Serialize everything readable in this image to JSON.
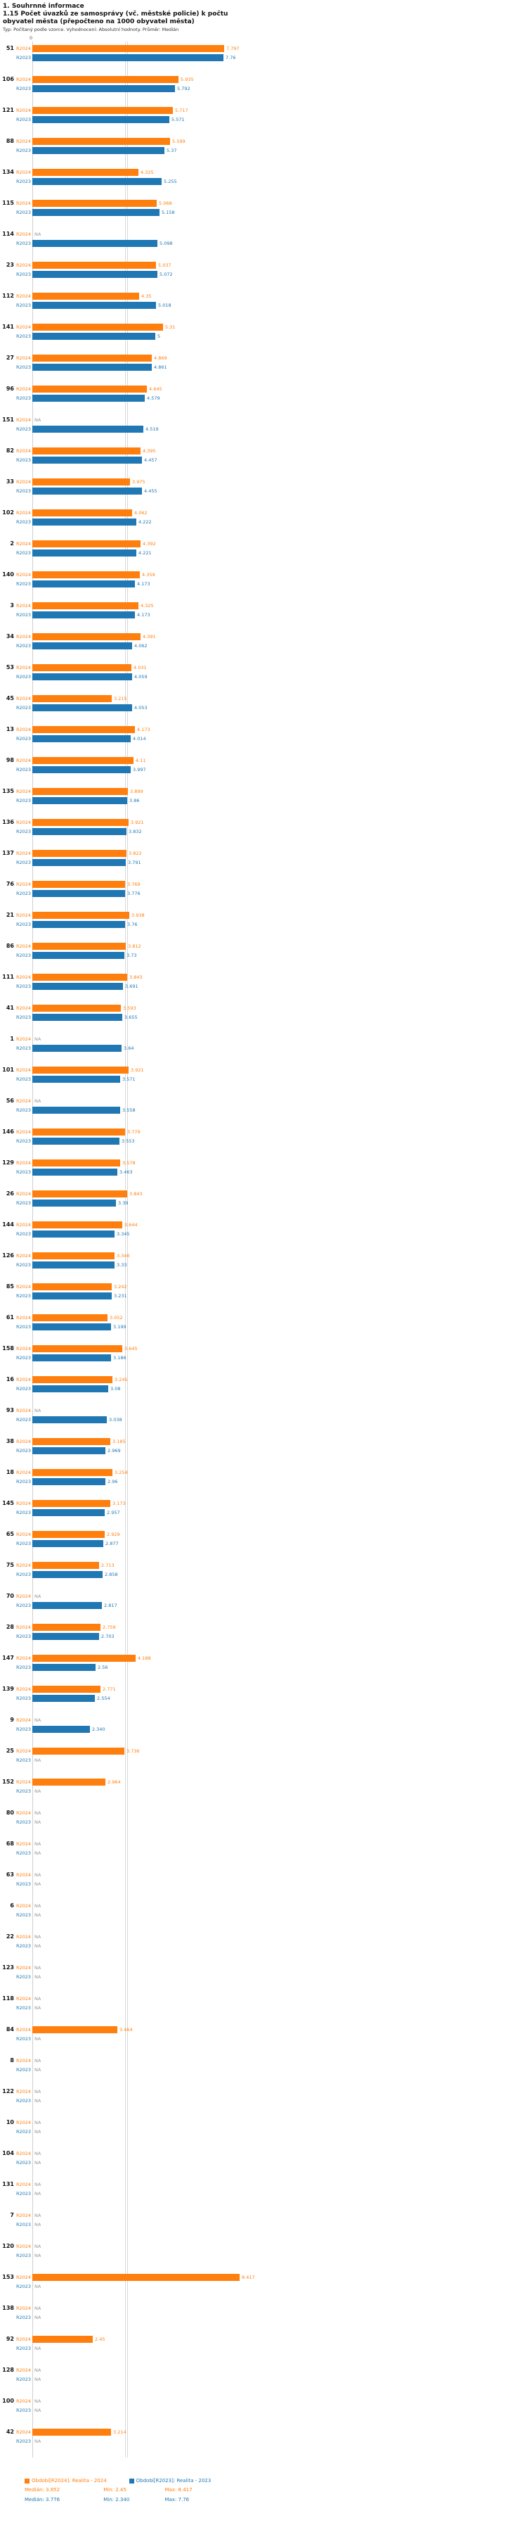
{
  "header": {
    "title": "1. Souhrnné informace",
    "subtitle": "1.15 Počet úvazků ze samosprávy (vč. městské policie) k počtu obyvatel města (přepočteno na 1000 obyvatel města)",
    "meta": "Typ: Počítaný podle vzorce. Vyhodnocení: Absolutní hodnoty. Průměr: Medián"
  },
  "chart_data": {
    "type": "bar",
    "orientation": "horizontal",
    "title": "1.15 Počet úvazků ze samosprávy (vč. městské policie) k počtu obyvatel města (přepočteno na 1000 obyvatel města)",
    "xlabel": "",
    "ylabel": "ID města",
    "axis": {
      "origin_label": "0",
      "xlim": [
        0,
        10
      ]
    },
    "grid": "median-lines-only",
    "legend_position": "bottom",
    "na_label": "NA",
    "series": [
      {
        "key": "r2024",
        "row_label": "R2024",
        "color": "#ff7f0e",
        "legend": "Období[R2024]: Realita - 2024"
      },
      {
        "key": "r2023",
        "row_label": "R2023",
        "color": "#1f77b4",
        "legend": "Období[R2023]: Realita - 2023"
      }
    ],
    "medians": [
      {
        "key": "r2024",
        "value": 3.852
      },
      {
        "key": "r2023",
        "value": 3.776
      }
    ],
    "rows": [
      {
        "id": "51",
        "r2024": "7.797",
        "r2023": "7.76"
      },
      {
        "id": "106",
        "r2024": "5.935",
        "r2023": "5.792"
      },
      {
        "id": "121",
        "r2024": "5.717",
        "r2023": "5.571"
      },
      {
        "id": "88",
        "r2024": "5.599",
        "r2023": "5.37"
      },
      {
        "id": "134",
        "r2024": "4.325",
        "r2023": "5.255"
      },
      {
        "id": "115",
        "r2024": "5.068",
        "r2023": "5.158"
      },
      {
        "id": "114",
        "r2024": null,
        "r2023": "5.098"
      },
      {
        "id": "23",
        "r2024": "5.037",
        "r2023": "5.072"
      },
      {
        "id": "112",
        "r2024": "4.35",
        "r2023": "5.018"
      },
      {
        "id": "141",
        "r2024": "5.31",
        "r2023": "5"
      },
      {
        "id": "27",
        "r2024": "4.869",
        "r2023": "4.861"
      },
      {
        "id": "96",
        "r2024": "4.645",
        "r2023": "4.579"
      },
      {
        "id": "151",
        "r2024": null,
        "r2023": "4.519"
      },
      {
        "id": "82",
        "r2024": "4.395",
        "r2023": "4.457"
      },
      {
        "id": "33",
        "r2024": "3.975",
        "r2023": "4.455"
      },
      {
        "id": "102",
        "r2024": "4.062",
        "r2023": "4.222"
      },
      {
        "id": "2",
        "r2024": "4.392",
        "r2023": "4.221"
      },
      {
        "id": "140",
        "r2024": "4.359",
        "r2023": "4.173"
      },
      {
        "id": "3",
        "r2024": "4.325",
        "r2023": "4.173"
      },
      {
        "id": "34",
        "r2024": "4.391",
        "r2023": "4.062"
      },
      {
        "id": "53",
        "r2024": "4.031",
        "r2023": "4.059"
      },
      {
        "id": "45",
        "r2024": "3.215",
        "r2023": "4.053"
      },
      {
        "id": "13",
        "r2024": "4.173",
        "r2023": "4.014"
      },
      {
        "id": "98",
        "r2024": "4.11",
        "r2023": "3.997"
      },
      {
        "id": "135",
        "r2024": "3.899",
        "r2023": "3.86"
      },
      {
        "id": "136",
        "r2024": "3.921",
        "r2023": "3.832"
      },
      {
        "id": "137",
        "r2024": "3.822",
        "r2023": "3.791"
      },
      {
        "id": "76",
        "r2024": "3.769",
        "r2023": "3.776"
      },
      {
        "id": "21",
        "r2024": "3.938",
        "r2023": "3.76"
      },
      {
        "id": "86",
        "r2024": "3.812",
        "r2023": "3.73"
      },
      {
        "id": "111",
        "r2024": "3.843",
        "r2023": "3.691"
      },
      {
        "id": "41",
        "r2024": "3.593",
        "r2023": "3.655"
      },
      {
        "id": "1",
        "r2024": null,
        "r2023": "3.64"
      },
      {
        "id": "101",
        "r2024": "3.921",
        "r2023": "3.571"
      },
      {
        "id": "56",
        "r2024": null,
        "r2023": "3.558"
      },
      {
        "id": "146",
        "r2024": "3.779",
        "r2023": "3.553"
      },
      {
        "id": "129",
        "r2024": "3.578",
        "r2023": "3.463"
      },
      {
        "id": "26",
        "r2024": "3.843",
        "r2023": "3.39"
      },
      {
        "id": "144",
        "r2024": "3.644",
        "r2023": "3.345"
      },
      {
        "id": "126",
        "r2024": "3.346",
        "r2023": "3.33"
      },
      {
        "id": "85",
        "r2024": "3.242",
        "r2023": "3.231"
      },
      {
        "id": "61",
        "r2024": "3.052",
        "r2023": "3.199"
      },
      {
        "id": "158",
        "r2024": "3.645",
        "r2023": "3.186"
      },
      {
        "id": "16",
        "r2024": "3.245",
        "r2023": "3.08"
      },
      {
        "id": "93",
        "r2024": null,
        "r2023": "3.038"
      },
      {
        "id": "38",
        "r2024": "3.185",
        "r2023": "2.969"
      },
      {
        "id": "18",
        "r2024": "3.254",
        "r2023": "2.96"
      },
      {
        "id": "145",
        "r2024": "3.173",
        "r2023": "2.957"
      },
      {
        "id": "65",
        "r2024": "2.929",
        "r2023": "2.877"
      },
      {
        "id": "75",
        "r2024": "2.713",
        "r2023": "2.858"
      },
      {
        "id": "70",
        "r2024": null,
        "r2023": "2.817"
      },
      {
        "id": "28",
        "r2024": "2.759",
        "r2023": "2.703"
      },
      {
        "id": "147",
        "r2024": "4.188",
        "r2023": "2.56"
      },
      {
        "id": "139",
        "r2024": "2.771",
        "r2023": "2.554"
      },
      {
        "id": "9",
        "r2024": null,
        "r2023": "2.340"
      },
      {
        "id": "25",
        "r2024": "3.736",
        "r2023": null
      },
      {
        "id": "152",
        "r2024": "2.964",
        "r2023": null
      },
      {
        "id": "80",
        "r2024": null,
        "r2023": null
      },
      {
        "id": "68",
        "r2024": null,
        "r2023": null
      },
      {
        "id": "63",
        "r2024": null,
        "r2023": null
      },
      {
        "id": "6",
        "r2024": null,
        "r2023": null
      },
      {
        "id": "22",
        "r2024": null,
        "r2023": null
      },
      {
        "id": "123",
        "r2024": null,
        "r2023": null
      },
      {
        "id": "118",
        "r2024": null,
        "r2023": null
      },
      {
        "id": "84",
        "r2024": "3.464",
        "r2023": null
      },
      {
        "id": "8",
        "r2024": null,
        "r2023": null
      },
      {
        "id": "122",
        "r2024": null,
        "r2023": null
      },
      {
        "id": "10",
        "r2024": null,
        "r2023": null
      },
      {
        "id": "104",
        "r2024": null,
        "r2023": null
      },
      {
        "id": "131",
        "r2024": null,
        "r2023": null
      },
      {
        "id": "7",
        "r2024": null,
        "r2023": null
      },
      {
        "id": "120",
        "r2024": null,
        "r2023": null
      },
      {
        "id": "153",
        "r2024": "8.417",
        "r2023": null
      },
      {
        "id": "138",
        "r2024": null,
        "r2023": null
      },
      {
        "id": "92",
        "r2024": "2.45",
        "r2023": null
      },
      {
        "id": "128",
        "r2024": null,
        "r2023": null
      },
      {
        "id": "100",
        "r2024": null,
        "r2023": null
      },
      {
        "id": "42",
        "r2024": "3.214",
        "r2023": null
      }
    ]
  },
  "footer": {
    "stats": [
      {
        "median": "Medián: 3.852",
        "min": "Min: 2.45",
        "max": "Max: 8.417"
      },
      {
        "median": "Medián: 3.776",
        "min": "Min: 2.340",
        "max": "Max: 7.76"
      }
    ]
  }
}
